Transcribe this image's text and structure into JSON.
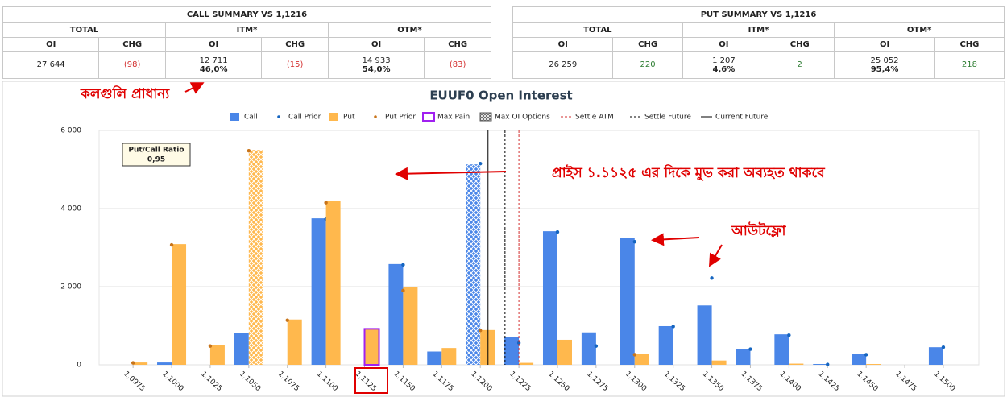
{
  "call_summary": {
    "title": "CALL SUMMARY VS 1,1216",
    "groups": [
      "TOTAL",
      "ITM*",
      "OTM*"
    ],
    "columns": [
      "OI",
      "CHG",
      "OI",
      "CHG",
      "OI",
      "CHG"
    ],
    "values": [
      "27 644",
      "(98)",
      "12 711",
      "(15)",
      "14 933",
      "(83)"
    ],
    "shares": {
      "2": "46,0%",
      "4": "54,0%"
    }
  },
  "put_summary": {
    "title": "PUT SUMMARY VS 1,1216",
    "groups": [
      "TOTAL",
      "ITM*",
      "OTM*"
    ],
    "columns": [
      "OI",
      "CHG",
      "OI",
      "CHG",
      "OI",
      "CHG"
    ],
    "values": [
      "26 259",
      "220",
      "1 207",
      "2",
      "25 052",
      "218"
    ],
    "shares": {
      "2": "4,6%",
      "4": "95,4%"
    }
  },
  "chart_data": {
    "type": "bar",
    "title": "EUUF0 Open Interest",
    "x": [
      1.0975,
      1.1,
      1.1025,
      1.105,
      1.1075,
      1.11,
      1.1125,
      1.115,
      1.1175,
      1.12,
      1.1225,
      1.125,
      1.1275,
      1.13,
      1.1325,
      1.135,
      1.1375,
      1.14,
      1.1425,
      1.145,
      1.1475,
      1.15
    ],
    "xlim": [
      1.0953,
      1.1523
    ],
    "xticks": [
      {
        "value": 1.0975,
        "label": "1,0975"
      },
      {
        "value": 1.1,
        "label": "1,1000"
      },
      {
        "value": 1.1025,
        "label": "1,1025"
      },
      {
        "value": 1.105,
        "label": "1,1050"
      },
      {
        "value": 1.1075,
        "label": "1,1075"
      },
      {
        "value": 1.11,
        "label": "1,1100"
      },
      {
        "value": 1.1125,
        "label": "1,1125"
      },
      {
        "value": 1.115,
        "label": "1,1150"
      },
      {
        "value": 1.1175,
        "label": "1,1175"
      },
      {
        "value": 1.12,
        "label": "1,1200"
      },
      {
        "value": 1.1225,
        "label": "1,1225"
      },
      {
        "value": 1.125,
        "label": "1,1250"
      },
      {
        "value": 1.1275,
        "label": "1,1275"
      },
      {
        "value": 1.13,
        "label": "1,1300"
      },
      {
        "value": 1.1325,
        "label": "1,1325"
      },
      {
        "value": 1.135,
        "label": "1,1350"
      },
      {
        "value": 1.1375,
        "label": "1,1375"
      },
      {
        "value": 1.14,
        "label": "1,1400"
      },
      {
        "value": 1.1425,
        "label": "1,1425"
      },
      {
        "value": 1.145,
        "label": "1,1450"
      },
      {
        "value": 1.1475,
        "label": "1,1475"
      },
      {
        "value": 1.15,
        "label": "1,1500"
      }
    ],
    "ylim": [
      0,
      6000
    ],
    "yticks": [
      0,
      {
        "value": 2000,
        "label": "2 000"
      },
      {
        "value": 4000,
        "label": "4 000"
      },
      {
        "value": 6000,
        "label": "6 000"
      }
    ],
    "grid": true,
    "series": [
      {
        "name": "Call",
        "color": "#4a86e8",
        "kind": "bar",
        "values": [
          0,
          60,
          0,
          820,
          0,
          3750,
          0,
          2580,
          340,
          5130,
          720,
          3420,
          830,
          3250,
          990,
          1520,
          410,
          780,
          20,
          270,
          0,
          450
        ]
      },
      {
        "name": "Call Prior",
        "color": "#1565c0",
        "kind": "dot",
        "values": [
          null,
          null,
          null,
          null,
          null,
          3730,
          null,
          2560,
          null,
          5150,
          560,
          3400,
          480,
          3150,
          980,
          2220,
          400,
          760,
          10,
          260,
          null,
          450
        ]
      },
      {
        "name": "Put",
        "color": "#ffb84d",
        "kind": "bar",
        "values": [
          60,
          3090,
          500,
          5500,
          1160,
          4200,
          920,
          1980,
          430,
          890,
          50,
          640,
          null,
          270,
          null,
          110,
          null,
          30,
          null,
          20,
          null,
          null
        ]
      },
      {
        "name": "Put Prior",
        "color": "#c8741a",
        "kind": "dot",
        "values": [
          50,
          3070,
          480,
          5480,
          1140,
          4150,
          null,
          1900,
          null,
          880,
          null,
          null,
          null,
          260,
          null,
          null,
          null,
          null,
          null,
          null,
          null,
          null
        ]
      }
    ],
    "markers": [
      {
        "name": "Max Pain",
        "color": "#a020f0",
        "x": 1.1125
      },
      {
        "name": "Max OI Options",
        "color": "#555555",
        "call": 1.12,
        "put": 1.105
      },
      {
        "name": "Settle ATM",
        "color": "#d32f2f",
        "x": 1.1225,
        "style": "dashed"
      },
      {
        "name": "Settle Future",
        "color": "#000000",
        "x": 1.1216,
        "style": "dashed"
      },
      {
        "name": "Current Future",
        "color": "#000000",
        "x": 1.1205,
        "style": "solid"
      }
    ],
    "put_call_ratio": {
      "label": "Put/Call Ratio",
      "value": "0,95"
    }
  },
  "annotations": [
    "কলগুলি প্রাধান্য",
    "প্রাইস ১.১১২৫ এর দিকে মুভ করা অব্যহত থাকবে",
    "আউটফ্লো"
  ]
}
